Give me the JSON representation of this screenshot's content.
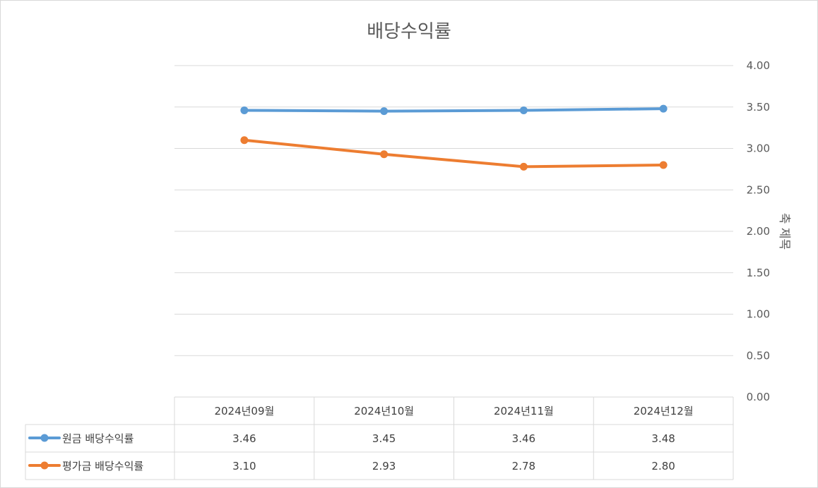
{
  "chart_data": {
    "type": "line",
    "title": "배당수익률",
    "xlabel": "",
    "ylabel": "축 제목",
    "ylim": [
      0,
      4
    ],
    "yticks": [
      "0.00",
      "0.50",
      "1.00",
      "1.50",
      "2.00",
      "2.50",
      "3.00",
      "3.50",
      "4.00"
    ],
    "y_axis_side": "right",
    "grid": true,
    "legend": "data-table",
    "categories": [
      "2024년09월",
      "2024년10월",
      "2024년11월",
      "2024년12월"
    ],
    "series": [
      {
        "name": "원금 배당수익률",
        "color": "#5b9bd5",
        "values": [
          3.46,
          3.45,
          3.46,
          3.48
        ],
        "labels": [
          "3.46",
          "3.45",
          "3.46",
          "3.48"
        ]
      },
      {
        "name": "평가금 배당수익률",
        "color": "#ed7d31",
        "values": [
          3.1,
          2.93,
          2.78,
          2.8
        ],
        "labels": [
          "3.10",
          "2.93",
          "2.78",
          "2.80"
        ]
      }
    ]
  }
}
